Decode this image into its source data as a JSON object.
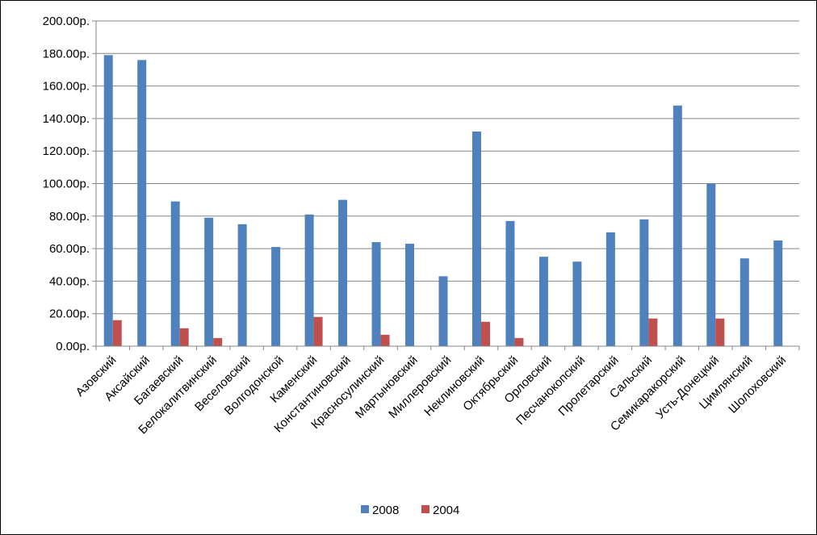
{
  "chart_data": {
    "type": "bar",
    "categories": [
      "Азовский",
      "Аксайский",
      "Багаевский",
      "Белокалитвинский",
      "Веселовский",
      "Волгодонской",
      "Каменский",
      "Константиновский",
      "Красносулинский",
      "Мартыновский",
      "Миллеровский",
      "Неклиновский",
      "Октябрьский",
      "Орловский",
      "Песчанокопский",
      "Пролетарский",
      "Сальский",
      "Семикаракорский",
      "Усть-Донецкий",
      "Цимлянский",
      "Шолоховский"
    ],
    "series": [
      {
        "name": "2008",
        "color": "#4F81BD",
        "values": [
          179,
          176,
          89,
          79,
          75,
          61,
          81,
          90,
          64,
          63,
          43,
          132,
          77,
          55,
          52,
          70,
          78,
          148,
          100,
          54,
          65
        ]
      },
      {
        "name": "2004",
        "color": "#C0504D",
        "values": [
          16,
          null,
          11,
          5,
          null,
          null,
          18,
          null,
          7,
          null,
          null,
          15,
          5,
          null,
          null,
          null,
          17,
          null,
          17,
          null,
          null
        ]
      }
    ],
    "ylim": [
      0,
      200
    ],
    "ytick_values": [
      0,
      20,
      40,
      60,
      80,
      100,
      120,
      140,
      160,
      180,
      200
    ],
    "ytick_labels": [
      "0.00р.",
      "20.00р.",
      "40.00р.",
      "60.00р.",
      "80.00р.",
      "100.00р.",
      "120.00р.",
      "140.00р.",
      "160.00р.",
      "180.00р.",
      "200.00р."
    ],
    "grid": true,
    "legend_position": "bottom",
    "title": "",
    "xlabel": "",
    "ylabel": ""
  }
}
